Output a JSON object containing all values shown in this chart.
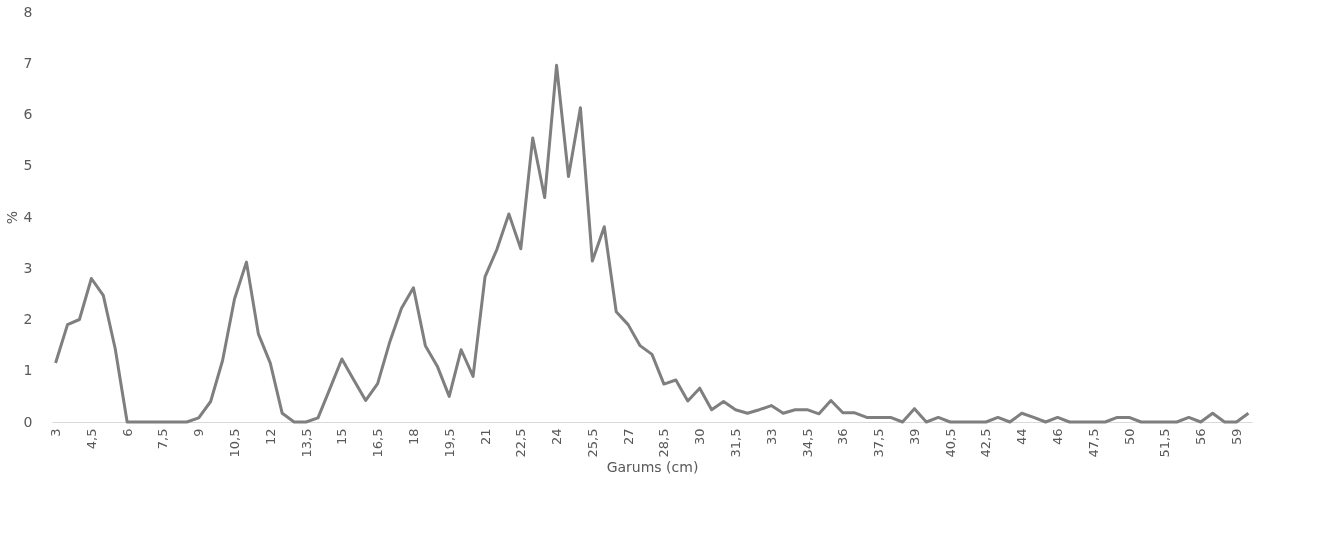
{
  "chart_data": {
    "type": "line",
    "xlabel": "Garums (cm)",
    "ylabel": "%",
    "categories": [
      "3",
      null,
      null,
      "4,5",
      null,
      null,
      "6",
      null,
      null,
      "7,5",
      null,
      null,
      "9",
      null,
      null,
      "10,5",
      null,
      null,
      "12",
      null,
      null,
      "13,5",
      null,
      null,
      "15",
      null,
      null,
      "16,5",
      null,
      null,
      "18",
      null,
      null,
      "19,5",
      null,
      null,
      "21",
      null,
      null,
      "22,5",
      null,
      null,
      "24",
      null,
      null,
      "25,5",
      null,
      null,
      "27",
      null,
      null,
      "28,5",
      null,
      null,
      "30",
      null,
      null,
      "31,5",
      null,
      null,
      "33",
      null,
      null,
      "34,5",
      null,
      null,
      "36",
      null,
      null,
      "37,5",
      null,
      null,
      "39",
      null,
      null,
      "40,5",
      null,
      null,
      "42,5",
      null,
      null,
      "44",
      null,
      null,
      "46",
      null,
      null,
      "47,5",
      null,
      null,
      "50",
      null,
      null,
      "51,5",
      null,
      null,
      "56",
      null,
      null,
      "59",
      null
    ],
    "series": [
      {
        "color": "#7f7f7f",
        "values": [
          1.15,
          1.9,
          2.0,
          2.8,
          2.47,
          1.43,
          0,
          0,
          0,
          0,
          0,
          0,
          0.08,
          0.4,
          1.2,
          2.4,
          3.12,
          1.72,
          1.15,
          0.17,
          0,
          0,
          0.08,
          0.65,
          1.23,
          0.82,
          0.42,
          0.75,
          1.55,
          2.22,
          2.62,
          1.49,
          1.09,
          0.5,
          1.41,
          0.89,
          2.83,
          3.37,
          4.06,
          3.38,
          5.54,
          4.38,
          6.96,
          4.79,
          6.13,
          3.14,
          3.81,
          2.15,
          1.9,
          1.49,
          1.32,
          0.74,
          0.82,
          0.41,
          0.66,
          0.24,
          0.4,
          0.24,
          0.17,
          0.24,
          0.32,
          0.17,
          0.24,
          0.24,
          0.16,
          0.42,
          0.18,
          0.18,
          0.09,
          0.09,
          0.09,
          0,
          0.26,
          0,
          0.09,
          0,
          0,
          0,
          0,
          0.09,
          0,
          0.17,
          0.09,
          0,
          0.09,
          0,
          0,
          0,
          0,
          0.09,
          0.09,
          0,
          0,
          0,
          0,
          0.09,
          0,
          0.17,
          0,
          0,
          0.17
        ]
      }
    ],
    "ylim": [
      0,
      8
    ],
    "yticks": [
      0,
      1,
      2,
      3,
      4,
      5,
      6,
      7,
      8
    ],
    "grid": false,
    "marker": "none",
    "line_style": "solid"
  }
}
